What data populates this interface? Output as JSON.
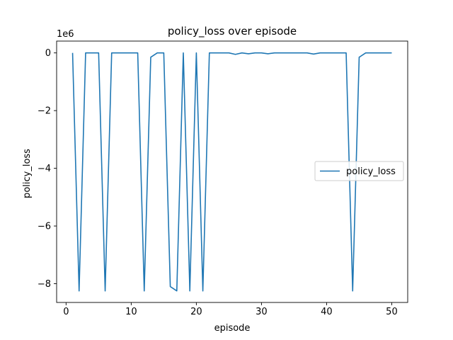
{
  "chart_data": {
    "type": "line",
    "title": "policy_loss over episode",
    "xlabel": "episode",
    "ylabel": "policy_loss",
    "y_scale_label": "1e6",
    "xlim": [
      -1.45,
      52.45
    ],
    "ylim": [
      -8.65,
      0.41
    ],
    "x_ticks": [
      0,
      10,
      20,
      30,
      40,
      50
    ],
    "x_tick_labels": [
      "0",
      "10",
      "20",
      "30",
      "40",
      "50"
    ],
    "y_ticks": [
      0,
      -2,
      -4,
      -6,
      -8
    ],
    "y_tick_labels": [
      "0",
      "−2",
      "−4",
      "−6",
      "−8"
    ],
    "grid": false,
    "legend_position": "center-right",
    "series": [
      {
        "name": "policy_loss",
        "color": "#1f77b4",
        "x": [
          1,
          2,
          3,
          4,
          5,
          6,
          7,
          8,
          9,
          10,
          11,
          12,
          13,
          14,
          15,
          16,
          17,
          18,
          19,
          20,
          21,
          22,
          23,
          24,
          25,
          26,
          27,
          28,
          29,
          30,
          31,
          32,
          33,
          34,
          35,
          36,
          37,
          38,
          39,
          40,
          41,
          42,
          43,
          44,
          45,
          46,
          47,
          48,
          49,
          50
        ],
        "values": [
          0,
          -8.25,
          0,
          0,
          0,
          -8.25,
          0,
          0,
          0,
          0,
          0,
          -8.25,
          -0.15,
          0,
          0,
          -8.1,
          -8.25,
          0,
          -8.25,
          0,
          -8.25,
          0,
          0,
          0,
          0,
          -0.05,
          0,
          -0.03,
          0,
          0,
          -0.03,
          0,
          0,
          0,
          0,
          0,
          0,
          -0.04,
          0,
          0,
          0,
          0,
          0,
          -8.25,
          -0.15,
          0,
          0,
          0,
          0,
          0
        ]
      }
    ]
  }
}
